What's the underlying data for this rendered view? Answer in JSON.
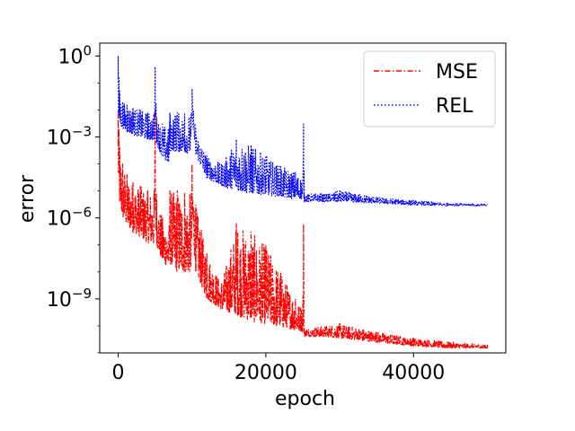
{
  "chart_data": {
    "type": "line",
    "xlabel": "epoch",
    "ylabel": "error",
    "xscale": "linear",
    "yscale": "log",
    "xlim": [
      -2500,
      52500
    ],
    "ylim": [
      1e-11,
      3
    ],
    "xticks": [
      {
        "value": 0,
        "label": "0"
      },
      {
        "value": 20000,
        "label": "20000"
      },
      {
        "value": 40000,
        "label": "40000"
      }
    ],
    "yticks": [
      {
        "value": 1,
        "base": "10",
        "exp": "0"
      },
      {
        "value": 0.001,
        "base": "10",
        "exp": "−3"
      },
      {
        "value": 1e-06,
        "base": "10",
        "exp": "−6"
      },
      {
        "value": 1e-09,
        "base": "10",
        "exp": "−9"
      }
    ],
    "grid": false,
    "legend": "top-right",
    "series": [
      {
        "name": "MSE",
        "color": "#ff0000",
        "style": "dashdot",
        "x": [
          0,
          200,
          600,
          1200,
          2000,
          3000,
          4000,
          4900,
          5000,
          5200,
          6000,
          6900,
          7000,
          8000,
          9000,
          9900,
          10000,
          10500,
          12000,
          14000,
          16000,
          18000,
          20000,
          22000,
          24000,
          25000,
          25100,
          25200,
          28000,
          30000,
          35000,
          40000,
          45000,
          50000
        ],
        "low": [
          3e-05,
          3e-06,
          1e-06,
          5e-07,
          3e-07,
          2e-07,
          1.2e-07,
          1e-07,
          2e-06,
          1e-07,
          2e-08,
          1.5e-08,
          2e-08,
          1e-08,
          1e-08,
          1e-08,
          5e-07,
          1e-08,
          1e-09,
          4e-10,
          2.5e-10,
          1.5e-10,
          1.2e-10,
          9e-11,
          7e-11,
          6e-11,
          8e-11,
          4e-11,
          4e-11,
          3.5e-11,
          2.5e-11,
          1.8e-11,
          1.5e-11,
          1.5e-11
        ],
        "high": [
          0.01,
          0.0004,
          0.0001,
          4e-05,
          2e-05,
          1.5e-05,
          1e-05,
          1e-05,
          0.01,
          5e-06,
          1e-06,
          5e-07,
          1e-05,
          1e-05,
          8e-06,
          8e-06,
          0.0001,
          3e-06,
          5e-08,
          4e-09,
          6e-07,
          3e-07,
          1e-07,
          1e-08,
          1e-09,
          5e-10,
          6e-07,
          8e-11,
          1e-10,
          1.2e-10,
          6e-11,
          3.5e-11,
          2.5e-11,
          2e-11
        ]
      },
      {
        "name": "REL",
        "color": "#0000ff",
        "style": "dotted",
        "x": [
          0,
          200,
          600,
          1200,
          2000,
          3000,
          4000,
          4900,
          5000,
          5200,
          6000,
          6900,
          7000,
          8000,
          9000,
          9900,
          10000,
          10500,
          12000,
          14000,
          16000,
          18000,
          20000,
          22000,
          24000,
          25000,
          25100,
          25200,
          28000,
          30000,
          35000,
          40000,
          45000,
          50000
        ],
        "low": [
          0.005,
          0.003,
          0.002,
          0.0015,
          0.0012,
          0.001,
          0.0008,
          0.0007,
          0.03,
          0.0006,
          0.00015,
          0.0001,
          0.0003,
          0.0003,
          0.00025,
          0.00025,
          0.005,
          0.0002,
          3e-05,
          1.5e-05,
          1e-05,
          8e-06,
          7e-06,
          6e-06,
          5e-06,
          5e-06,
          6e-06,
          4e-06,
          4e-06,
          4e-06,
          3.5e-06,
          3e-06,
          2.8e-06,
          2.8e-06
        ],
        "high": [
          1.0,
          0.04,
          0.02,
          0.015,
          0.012,
          0.01,
          0.008,
          0.008,
          0.4,
          0.005,
          0.003,
          0.002,
          0.008,
          0.008,
          0.007,
          0.007,
          0.06,
          0.002,
          0.0002,
          0.0001,
          0.0008,
          0.0005,
          0.0002,
          8e-05,
          5e-05,
          3e-05,
          0.003,
          8e-06,
          8e-06,
          1e-05,
          6e-06,
          4.5e-06,
          3.5e-06,
          3.2e-06
        ]
      }
    ]
  }
}
